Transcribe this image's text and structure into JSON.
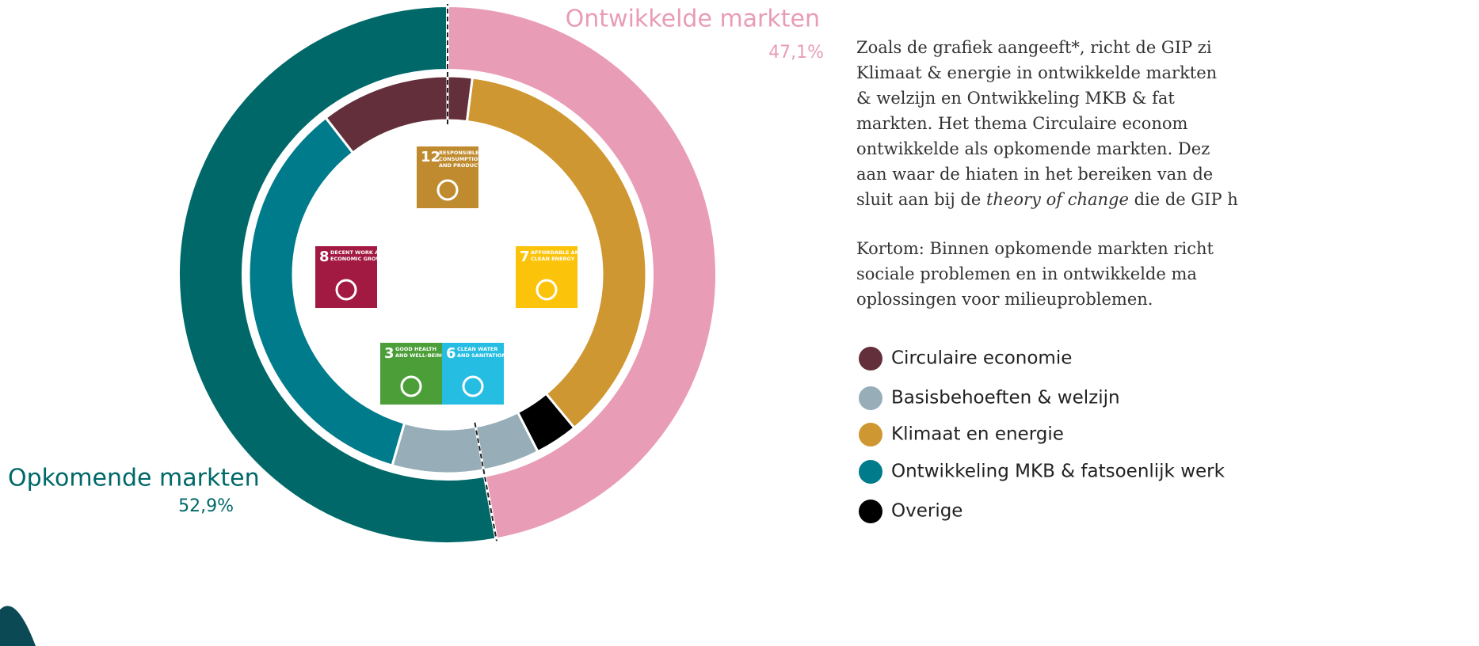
{
  "chart_data": {
    "type": "donut",
    "outer": {
      "categories": [
        "Ontwikkelde markten",
        "Opkomende markten"
      ],
      "values": [
        47.1,
        52.9
      ],
      "value_labels": [
        "47,1%",
        "52,9%"
      ],
      "colors": [
        "#e99cb5",
        "#006868"
      ]
    },
    "series": [
      {
        "name": "Circulaire economie",
        "color": "#622f3b",
        "values": [
          2.0,
          10.5
        ]
      },
      {
        "name": "Basisbehoeften & welzijn",
        "color": "#97aeb9",
        "values": [
          4.6,
          7.4
        ]
      },
      {
        "name": "Klimaat en energie",
        "color": "#cf9731",
        "values": [
          37.0,
          0
        ]
      },
      {
        "name": "Ontwikkeling MKB & fatsoenlijk werk",
        "color": "#007b8c",
        "values": [
          0,
          35.0
        ]
      },
      {
        "name": "Overige",
        "color": "#000000",
        "values": [
          3.5,
          0
        ]
      }
    ]
  },
  "icons": [
    {
      "number": 12,
      "label": [
        "RESPONSIBLE",
        "CONSUMPTION",
        "AND PRODUCTION"
      ],
      "color": "#bf8b2e"
    },
    {
      "number": 8,
      "label": [
        "DECENT WORK AND",
        "ECONOMIC GROWTH"
      ],
      "color": "#a21942"
    },
    {
      "number": 7,
      "label": [
        "AFFORDABLE AND",
        "CLEAN ENERGY"
      ],
      "color": "#fcc30b"
    },
    {
      "number": 3,
      "label": [
        "GOOD HEALTH",
        "AND WELL-BEING"
      ],
      "color": "#4c9f38"
    },
    {
      "number": 6,
      "label": [
        "CLEAN WATER",
        "AND SANITATION"
      ],
      "color": "#26bde2"
    }
  ],
  "text": {
    "paragraphs": [
      [
        [
          "Zoals de grafiek aangeeft*, richt de GIP zi"
        ],
        [
          "Klimaat & energie in ontwikkelde markten"
        ],
        [
          "& welzijn en Ontwikkeling MKB & fat"
        ],
        [
          "markten. Het thema Circulaire econom"
        ],
        [
          "ontwikkelde als opkomende markten. Dez"
        ],
        [
          "aan waar de hiaten in het bereiken van de"
        ],
        [
          "sluit aan bij de ",
          "theory of change",
          " die de GIP h"
        ]
      ],
      [
        [
          "Kortom: Binnen opkomende markten richt"
        ],
        [
          "sociale problemen en in ontwikkelde ma"
        ],
        [
          "oplossingen voor milieuproblemen."
        ]
      ]
    ]
  }
}
